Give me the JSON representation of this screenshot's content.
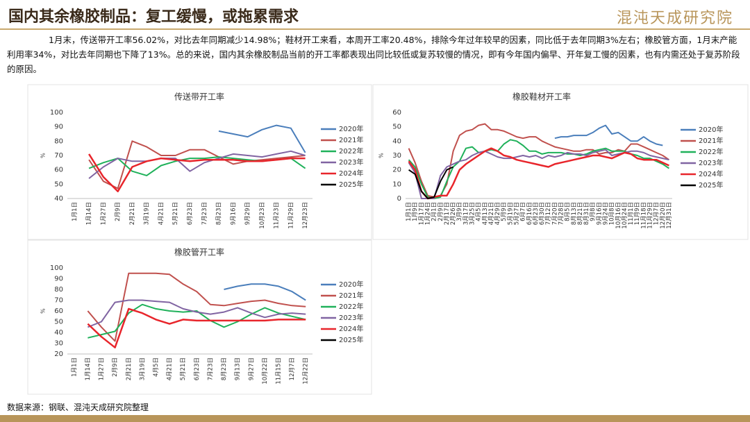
{
  "header": {
    "title": "国内其余橡胶制品：复工缓慢，或拖累需求",
    "logo": "混沌天成研究院"
  },
  "paragraph": "1月末，传送带开工率56.02%，对比去年同期减少14.98%；鞋材开工来看，本周开工率20.48%，排除今年过年较早的因素，同比低于去年同期3%左右；橡胶管方面，1月末产能利用率34%，对比去年同期也下降了13%。总的来说，国内其余橡胶制品当前的开工率都表现出同比较低或复苏较慢的情况，即有今年国内偏早、开年复工慢的因素，也有内需还处于复苏阶段的原因。",
  "source": "数据来源：钢联、混沌天成研究院整理",
  "chart_data": [
    {
      "type": "line",
      "title": "传送带开工率",
      "y_label": "%",
      "categories": [
        "1月1日",
        "1月14日",
        "1月27日",
        "2月9日",
        "2月21日",
        "3月19日",
        "4月21日",
        "5月21日",
        "6月23日",
        "7月23日",
        "8月23日",
        "9月16日",
        "9月29日",
        "10月23日",
        "11月23日",
        "11月29日",
        "12月23日"
      ],
      "ylim": [
        40,
        100
      ],
      "yticks": [
        40,
        50,
        60,
        70,
        80,
        90,
        100
      ],
      "series": [
        {
          "name": "2020年",
          "color": "#4a7ebb",
          "values": [
            null,
            null,
            null,
            null,
            null,
            null,
            null,
            null,
            null,
            null,
            87,
            85,
            83,
            88,
            91,
            89,
            72
          ]
        },
        {
          "name": "2021年",
          "color": "#c0504d",
          "values": [
            null,
            67,
            52,
            47,
            80,
            76,
            70,
            70,
            74,
            74,
            69,
            64,
            66,
            67,
            68,
            69,
            70
          ]
        },
        {
          "name": "2022年",
          "color": "#1fb15a",
          "values": [
            null,
            61,
            65,
            68,
            59,
            56,
            63,
            66,
            68,
            68,
            69,
            68,
            67,
            66,
            67,
            68,
            61
          ]
        },
        {
          "name": "2023年",
          "color": "#8064a2",
          "values": [
            null,
            54,
            62,
            68,
            66,
            66,
            68,
            68,
            59,
            65,
            68,
            71,
            70,
            69,
            71,
            73,
            70
          ]
        },
        {
          "name": "2024年",
          "color": "#e8252b",
          "values": [
            null,
            71,
            55,
            45,
            62,
            66,
            68,
            67,
            66,
            67,
            67,
            67,
            66,
            66,
            67,
            68,
            68
          ]
        },
        {
          "name": "2025年",
          "color": "#000000",
          "values": [
            null,
            null,
            null,
            null,
            null,
            null,
            null,
            null,
            null,
            null,
            null,
            null,
            null,
            null,
            null,
            null,
            null
          ]
        }
      ]
    },
    {
      "type": "line",
      "title": "橡胶鞋材开工率",
      "y_label": "%",
      "categories": [
        "1月1日",
        "1月9日",
        "1月17日",
        "1月24日",
        "2月1日",
        "2月9日",
        "2月17日",
        "2月26日",
        "3月9日",
        "3月17日",
        "3月25日",
        "4月5日",
        "4月13日",
        "4月21日",
        "4月29日",
        "5月9日",
        "5月19日",
        "5月27日",
        "6月7日",
        "6月16日",
        "6月23日",
        "6月30日",
        "7月12日",
        "7月20日",
        "7月28日",
        "8月5日",
        "8月13日",
        "8月21日",
        "8月31日",
        "9月8日",
        "9月16日",
        "9月24日",
        "10月8日",
        "10月16日",
        "10月24日",
        "11月1日",
        "11月9日",
        "11月18日",
        "11月29日",
        "12月7日",
        "12月20日",
        "12月31日"
      ],
      "ylim": [
        0,
        60
      ],
      "yticks": [
        0,
        10,
        20,
        30,
        40,
        50,
        60
      ],
      "series": [
        {
          "name": "2020年",
          "color": "#4a7ebb",
          "values": [
            null,
            null,
            null,
            null,
            null,
            null,
            null,
            null,
            null,
            null,
            null,
            null,
            null,
            null,
            null,
            null,
            null,
            null,
            null,
            null,
            null,
            null,
            null,
            42,
            43,
            43,
            44,
            44,
            44,
            46,
            49,
            51,
            45,
            46,
            43,
            40,
            40,
            43,
            40,
            38,
            37,
            null
          ]
        },
        {
          "name": "2021年",
          "color": "#c0504d",
          "values": [
            35,
            25,
            12,
            2,
            1,
            2,
            10,
            33,
            44,
            47,
            48,
            51,
            52,
            48,
            48,
            47,
            45,
            43,
            42,
            43,
            43,
            40,
            38,
            36,
            35,
            34,
            33,
            33,
            34,
            34,
            31,
            32,
            32,
            34,
            33,
            38,
            38,
            36,
            34,
            32,
            30,
            27
          ]
        },
        {
          "name": "2022年",
          "color": "#1fb15a",
          "values": [
            27,
            22,
            10,
            1,
            0,
            1,
            12,
            22,
            26,
            35,
            36,
            32,
            33,
            34,
            33,
            38,
            41,
            40,
            37,
            33,
            33,
            31,
            32,
            32,
            32,
            31,
            31,
            30,
            31,
            33,
            34,
            35,
            33,
            33,
            33,
            31,
            30,
            28,
            28,
            26,
            24,
            21
          ]
        },
        {
          "name": "2023年",
          "color": "#8064a2",
          "values": [
            25,
            18,
            0,
            0,
            0,
            16,
            22,
            24,
            26,
            27,
            30,
            32,
            33,
            31,
            29,
            28,
            28,
            29,
            30,
            29,
            30,
            28,
            30,
            29,
            30,
            32,
            31,
            31,
            30,
            32,
            33,
            34,
            30,
            31,
            32,
            33,
            33,
            32,
            30,
            29,
            28,
            27
          ]
        },
        {
          "name": "2024年",
          "color": "#e8252b",
          "values": [
            26,
            20,
            5,
            0,
            1,
            2,
            2,
            10,
            20,
            24,
            27,
            30,
            33,
            35,
            33,
            30,
            29,
            27,
            26,
            25,
            24,
            23,
            22,
            24,
            25,
            26,
            27,
            28,
            29,
            30,
            30,
            29,
            28,
            30,
            32,
            31,
            28,
            27,
            27,
            27,
            25,
            23
          ]
        },
        {
          "name": "2025年",
          "color": "#000000",
          "values": [
            20,
            17,
            5,
            0,
            1,
            12,
            20,
            22,
            null,
            null,
            null,
            null,
            null,
            null,
            null,
            null,
            null,
            null,
            null,
            null,
            null,
            null,
            null,
            null,
            null,
            null,
            null,
            null,
            null,
            null,
            null,
            null,
            null,
            null,
            null,
            null,
            null,
            null,
            null,
            null,
            null,
            null
          ]
        }
      ]
    },
    {
      "type": "line",
      "title": "橡胶管开工率",
      "y_label": "%",
      "categories": [
        "1月1日",
        "1月14日",
        "1月27日",
        "2月9日",
        "2月21日",
        "3月19日",
        "4月5日",
        "4月21日",
        "5月21日",
        "6月23日",
        "7月23日",
        "8月23日",
        "9月13日",
        "9月27日",
        "10月22日",
        "11月15日",
        "12月7日",
        "12月22日"
      ],
      "ylim": [
        20,
        100
      ],
      "yticks": [
        20,
        30,
        40,
        50,
        60,
        70,
        80,
        90,
        100
      ],
      "series": [
        {
          "name": "2020年",
          "color": "#4a7ebb",
          "values": [
            null,
            null,
            null,
            null,
            null,
            null,
            null,
            null,
            null,
            null,
            null,
            80,
            83,
            85,
            85,
            83,
            78,
            70
          ]
        },
        {
          "name": "2021年",
          "color": "#c0504d",
          "values": [
            null,
            60,
            45,
            32,
            95,
            95,
            95,
            94,
            85,
            78,
            66,
            65,
            67,
            69,
            70,
            67,
            65,
            64
          ]
        },
        {
          "name": "2022年",
          "color": "#1fb15a",
          "values": [
            null,
            35,
            38,
            41,
            58,
            66,
            62,
            60,
            59,
            60,
            51,
            45,
            50,
            57,
            63,
            58,
            55,
            52
          ]
        },
        {
          "name": "2023年",
          "color": "#8064a2",
          "values": [
            null,
            45,
            50,
            68,
            70,
            70,
            69,
            68,
            62,
            59,
            57,
            59,
            63,
            58,
            54,
            57,
            58,
            57
          ]
        },
        {
          "name": "2024年",
          "color": "#e8252b",
          "values": [
            null,
            48,
            36,
            26,
            62,
            58,
            52,
            48,
            52,
            51,
            51,
            51,
            51,
            51,
            51,
            52,
            52,
            52
          ]
        },
        {
          "name": "2025年",
          "color": "#000000",
          "values": [
            null,
            null,
            null,
            null,
            null,
            null,
            null,
            null,
            null,
            null,
            null,
            null,
            null,
            null,
            null,
            null,
            null,
            null
          ]
        }
      ]
    }
  ]
}
